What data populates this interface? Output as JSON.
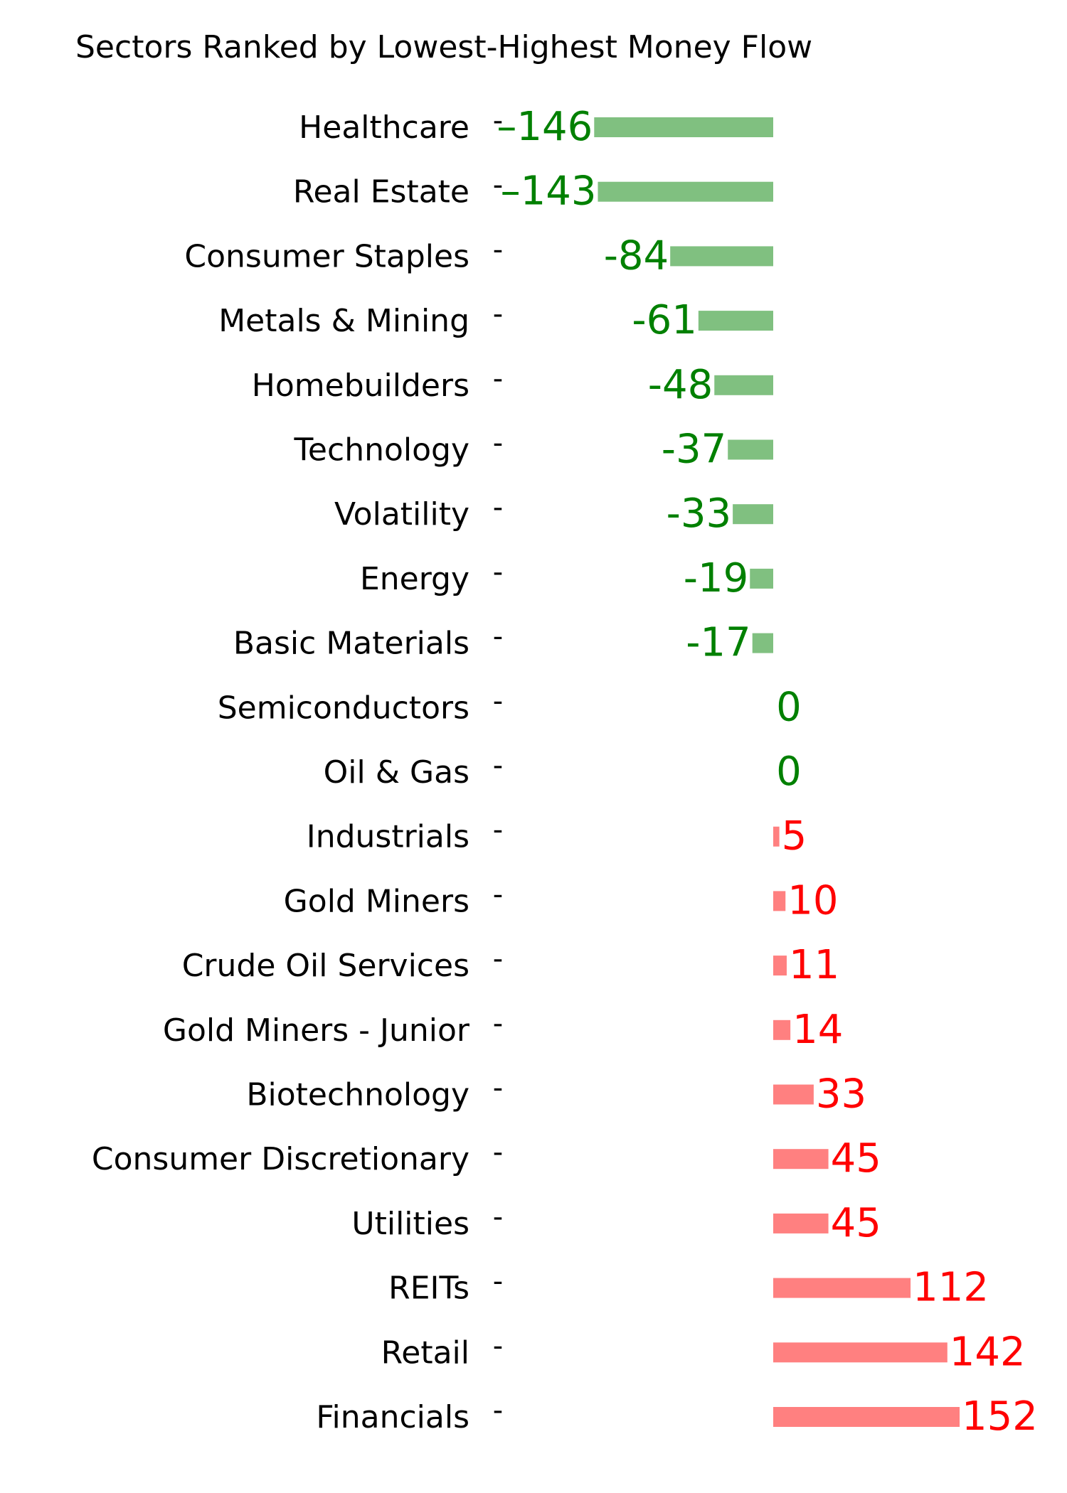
{
  "chart_data": {
    "type": "bar",
    "orientation": "horizontal",
    "title": "Sectors Ranked by Lowest-Highest Money Flow",
    "xlabel": "",
    "ylabel": "",
    "grid": false,
    "xlim": [
      -150,
      152
    ],
    "colors": {
      "negative_bar": "#80c080",
      "negative_text": "#008000",
      "positive_bar": "#ff8080",
      "positive_text": "#ff0000"
    },
    "categories": [
      "Healthcare",
      "Real Estate",
      "Consumer Staples",
      "Metals & Mining",
      "Homebuilders",
      "Technology",
      "Volatility",
      "Energy",
      "Basic Materials",
      "Semiconductors",
      "Oil & Gas",
      "Industrials",
      "Gold Miners",
      "Crude Oil Services",
      "Gold Miners - Junior",
      "Biotechnology",
      "Consumer Discretionary",
      "Utilities",
      "REITs",
      "Retail",
      "Financials"
    ],
    "values": [
      -146,
      -143,
      -84,
      -61,
      -48,
      -37,
      -33,
      -19,
      -17,
      0,
      0,
      5,
      10,
      11,
      14,
      33,
      45,
      45,
      112,
      142,
      152
    ],
    "data_labels": [
      "–146",
      "–143",
      "-84",
      "-61",
      "-48",
      "-37",
      "-33",
      "-19",
      "-17",
      "0",
      "0",
      "5",
      "10",
      "11",
      "14",
      "33",
      "45",
      "45",
      "112",
      "142",
      "152"
    ],
    "tick_mark": "-"
  }
}
